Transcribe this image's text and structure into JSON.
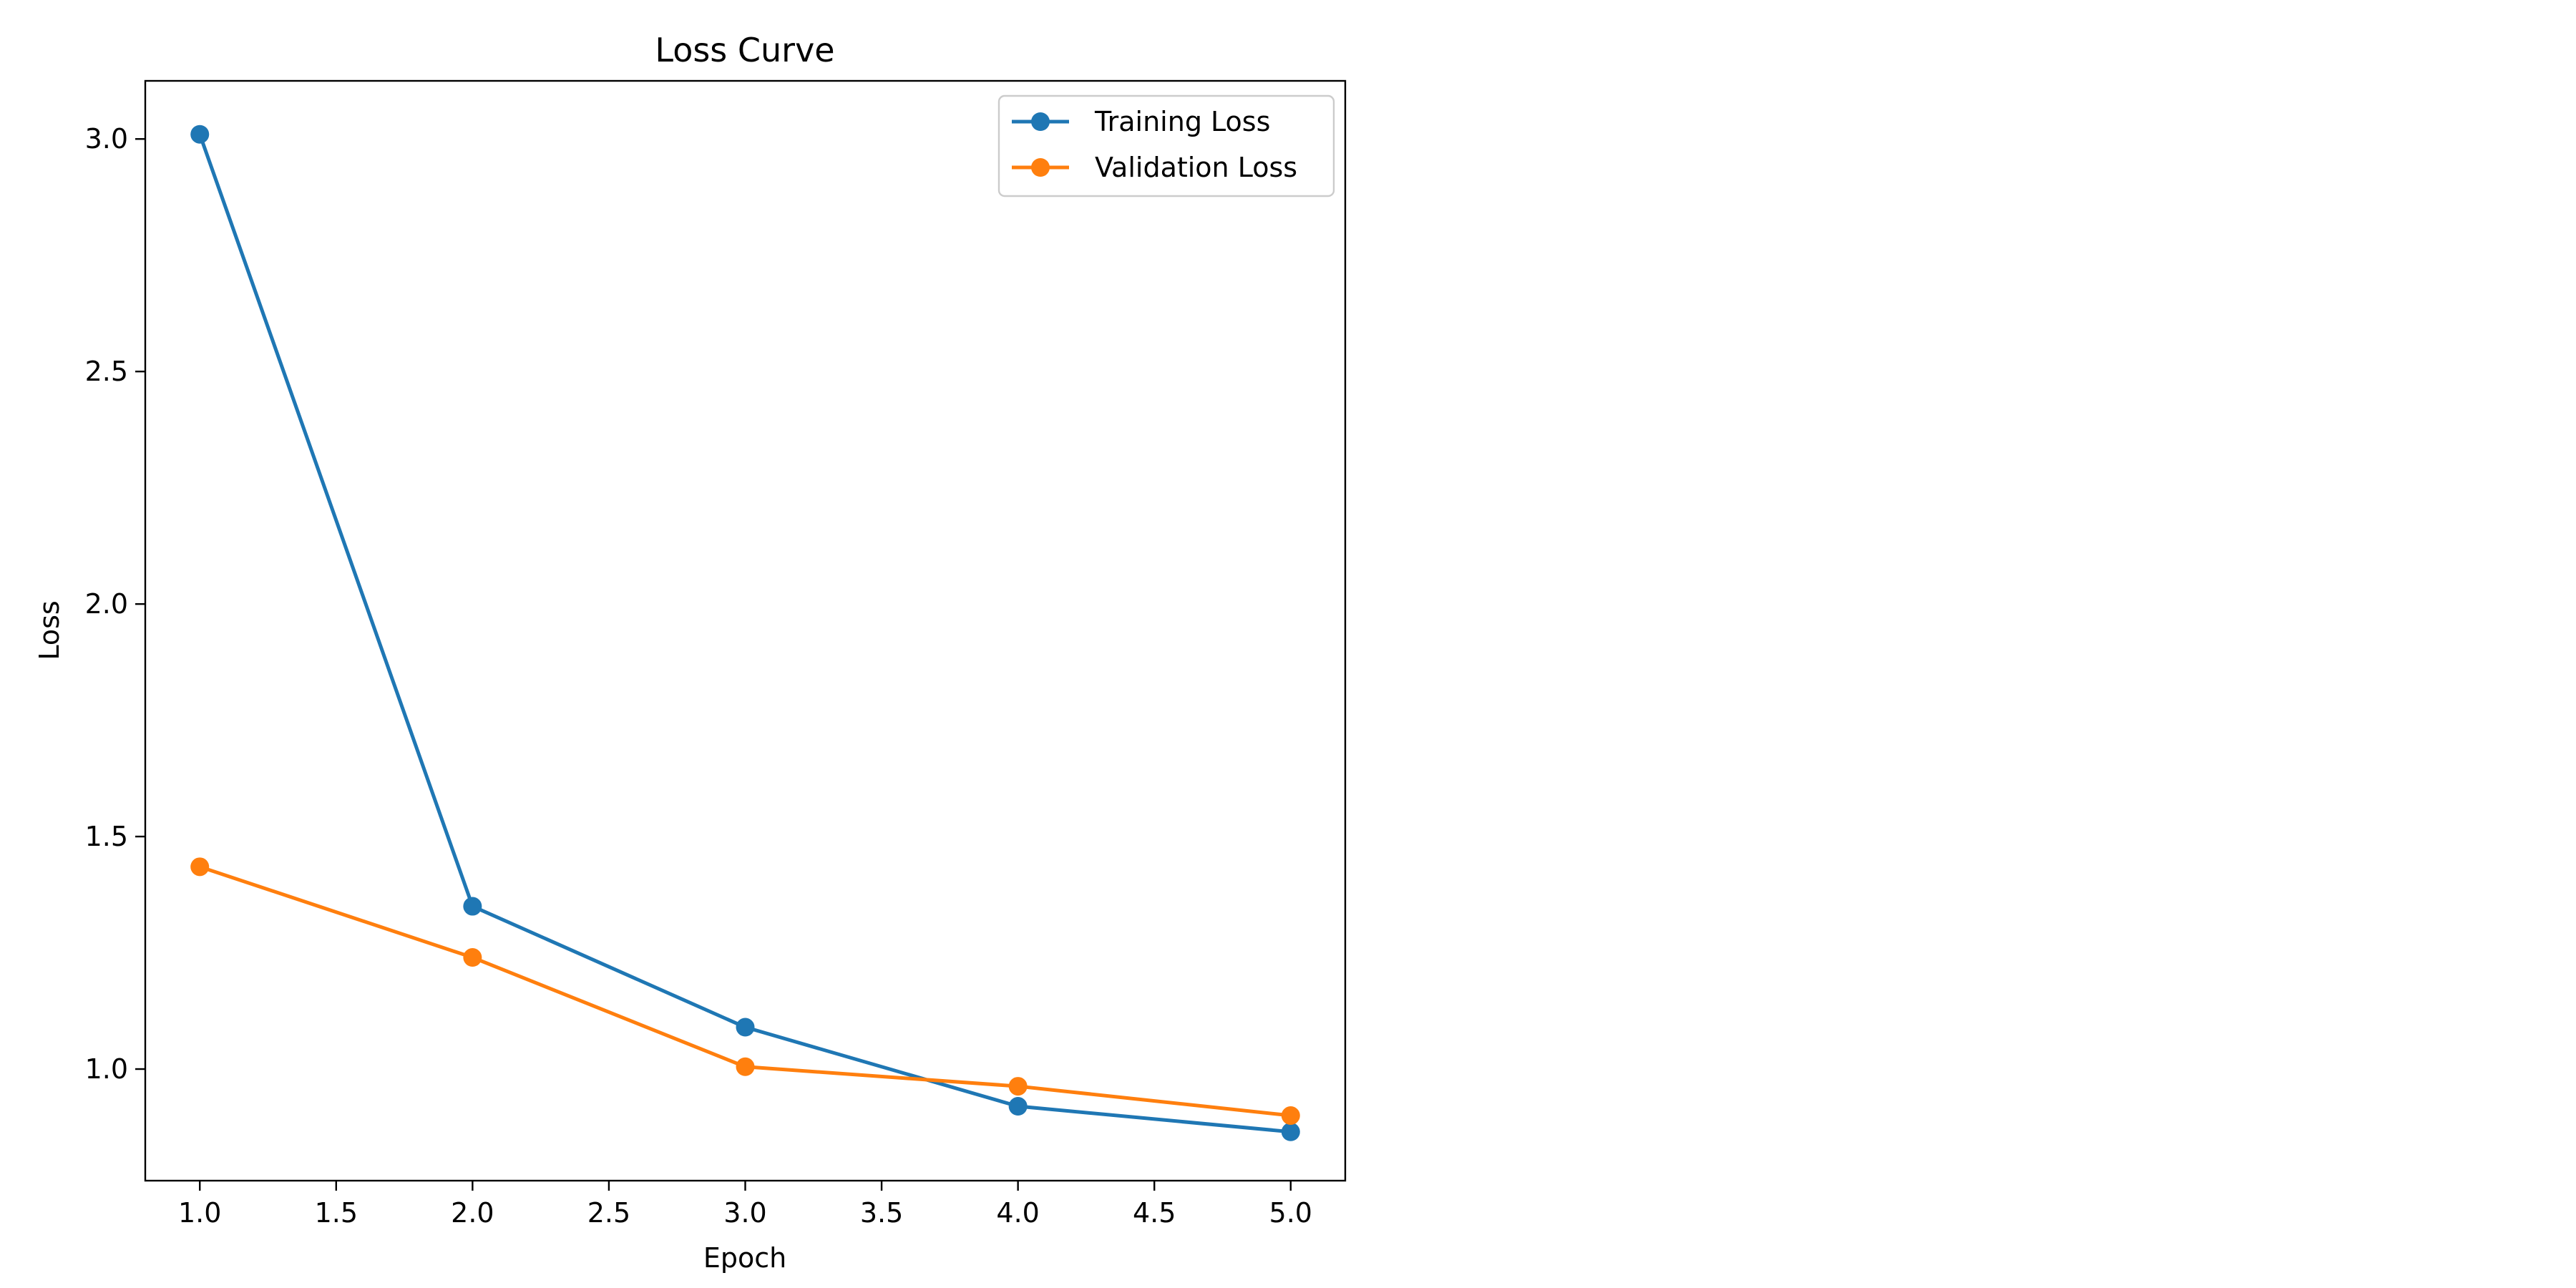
{
  "chart_data": {
    "type": "line",
    "title": "Loss Curve",
    "xlabel": "Epoch",
    "ylabel": "Loss",
    "x": [
      1,
      2,
      3,
      4,
      5
    ],
    "series": [
      {
        "name": "Training Loss",
        "color": "#1f77b4",
        "marker": "circle",
        "values": [
          3.01,
          1.35,
          1.09,
          0.92,
          0.865
        ]
      },
      {
        "name": "Validation Loss",
        "color": "#ff7f0e",
        "marker": "circle",
        "values": [
          1.435,
          1.24,
          1.005,
          0.963,
          0.9
        ]
      }
    ],
    "xlim": [
      0.8,
      5.2
    ],
    "ylim": [
      0.76,
      3.125
    ],
    "x_ticks": [
      1.0,
      1.5,
      2.0,
      2.5,
      3.0,
      3.5,
      4.0,
      4.5,
      5.0
    ],
    "x_tick_labels": [
      "1.0",
      "1.5",
      "2.0",
      "2.5",
      "3.0",
      "3.5",
      "4.0",
      "4.5",
      "5.0"
    ],
    "y_ticks": [
      1.0,
      1.5,
      2.0,
      2.5,
      3.0
    ],
    "y_tick_labels": [
      "1.0",
      "1.5",
      "2.0",
      "2.5",
      "3.0"
    ],
    "grid": false,
    "legend_position": "top-right"
  }
}
